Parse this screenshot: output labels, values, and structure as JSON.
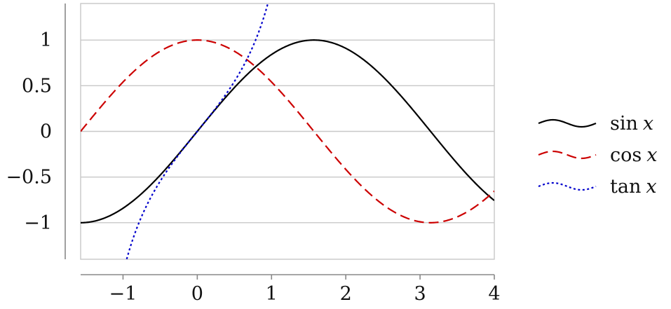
{
  "chart_data": {
    "type": "line",
    "title": "",
    "xlabel": "",
    "ylabel": "",
    "xlim": [
      -1.5708,
      4
    ],
    "ylim": [
      -1.4,
      1.4
    ],
    "x_ticks": [
      -1,
      0,
      1,
      2,
      3,
      4
    ],
    "x_tick_labels": [
      "−1",
      "0",
      "1",
      "2",
      "3",
      "4"
    ],
    "y_ticks": [
      1,
      0.5,
      0,
      -0.5,
      -1
    ],
    "y_tick_labels": [
      "1",
      "0.5",
      "0",
      "−0.5",
      "−1"
    ],
    "grid": {
      "horizontal": true,
      "vertical": false
    },
    "legend_position": "outside-right",
    "series": [
      {
        "name": "sin x",
        "legend_fn": "sin",
        "legend_var": "x",
        "function": "sin",
        "color": "#000000",
        "dash": "solid",
        "domain": [
          -1.5708,
          4
        ]
      },
      {
        "name": "cos x",
        "legend_fn": "cos",
        "legend_var": "x",
        "function": "cos",
        "color": "#cc0000",
        "dash": "dashed",
        "domain": [
          -1.5708,
          4
        ]
      },
      {
        "name": "tan x",
        "legend_fn": "tan",
        "legend_var": "x",
        "function": "tan",
        "color": "#0000cc",
        "dash": "dotted",
        "domain": [
          -0.95,
          0.95
        ]
      }
    ]
  }
}
